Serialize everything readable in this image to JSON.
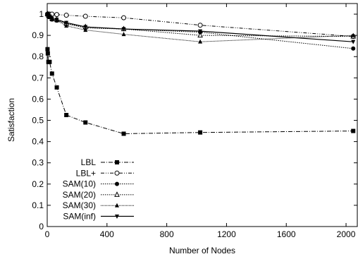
{
  "chart_data": {
    "type": "line",
    "xlabel": "Number of Nodes",
    "ylabel": "Satisfaction",
    "xlim": [
      0,
      2080
    ],
    "ylim": [
      0,
      1.05
    ],
    "xticks": [
      0,
      400,
      800,
      1200,
      1600,
      2000
    ],
    "yticks": [
      0,
      0.1,
      0.2,
      0.3,
      0.4,
      0.5,
      0.6,
      0.7,
      0.8,
      0.9,
      1
    ],
    "grid": false,
    "legend_position": "bottom-left",
    "series": [
      {
        "name": "LBL",
        "marker": "filled-square",
        "dash": "dash-dot",
        "x": [
          2,
          4,
          8,
          16,
          32,
          64,
          128,
          256,
          512,
          1024,
          2048
        ],
        "y": [
          0.835,
          0.815,
          0.775,
          0.775,
          0.72,
          0.655,
          0.525,
          0.49,
          0.437,
          0.443,
          0.45
        ]
      },
      {
        "name": "LBL+",
        "marker": "open-circle",
        "dash": "dash-dot-dot",
        "x": [
          2,
          4,
          8,
          16,
          32,
          64,
          128,
          256,
          512,
          1024,
          2048
        ],
        "y": [
          1.0,
          1.0,
          1.0,
          1.0,
          1.0,
          0.998,
          0.995,
          0.99,
          0.983,
          0.948,
          0.895
        ]
      },
      {
        "name": "SAM(10)",
        "marker": "filled-circle",
        "dash": "dotted",
        "x": [
          2,
          4,
          8,
          16,
          32,
          64,
          128,
          256,
          512,
          1024,
          2048
        ],
        "y": [
          1.0,
          1.0,
          0.995,
          0.99,
          0.975,
          0.97,
          0.955,
          0.935,
          0.93,
          0.915,
          0.838
        ]
      },
      {
        "name": "SAM(20)",
        "marker": "open-triangle",
        "dash": "dotted",
        "x": [
          2,
          4,
          8,
          16,
          32,
          64,
          128,
          256,
          512,
          1024,
          2048
        ],
        "y": [
          1.0,
          1.0,
          0.995,
          0.99,
          0.98,
          0.975,
          0.955,
          0.94,
          0.93,
          0.9,
          0.895
        ]
      },
      {
        "name": "SAM(30)",
        "marker": "filled-triangle",
        "dash": "dense-dotted",
        "x": [
          2,
          4,
          8,
          16,
          32,
          64,
          128,
          256,
          512,
          1024,
          2048
        ],
        "y": [
          1.0,
          1.0,
          0.99,
          0.985,
          0.975,
          0.97,
          0.945,
          0.925,
          0.905,
          0.87,
          0.9
        ]
      },
      {
        "name": "SAM(inf)",
        "marker": "filled-triangle-down",
        "dash": "solid",
        "x": [
          2,
          4,
          8,
          16,
          32,
          64,
          128,
          256,
          512,
          1024,
          2048
        ],
        "y": [
          1.0,
          1.0,
          0.995,
          0.99,
          0.98,
          0.975,
          0.96,
          0.94,
          0.93,
          0.92,
          0.87
        ]
      }
    ]
  }
}
